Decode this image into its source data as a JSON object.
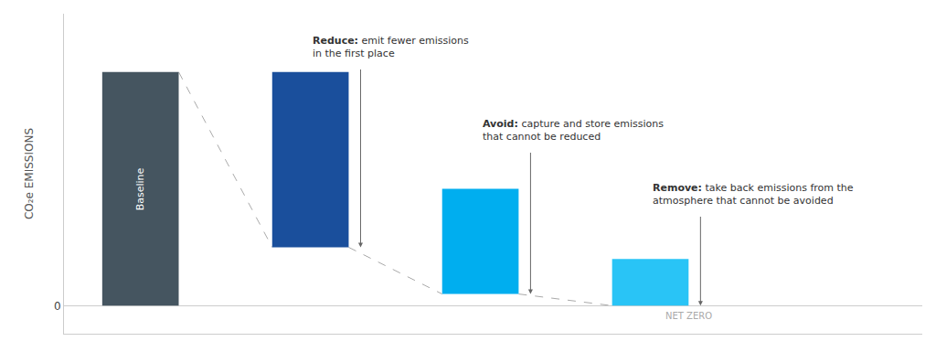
{
  "chart_data": {
    "type": "bar",
    "categories": [
      null,
      null,
      null,
      null
    ],
    "values": [
      10,
      7.5,
      4.5,
      2.0
    ],
    "bottoms": [
      0,
      2.5,
      0.5,
      0.0
    ],
    "colors": [
      "#455560",
      "#1a4f9c",
      "#00aeef",
      "#29c4f6"
    ],
    "ylabel": "CO₂e EMISSIONS",
    "ylim": [
      -1.2,
      12.5
    ],
    "yticks": [
      0
    ],
    "grid": false,
    "tick_labels": "y",
    "annotations": [
      {
        "text": "Baseline"
      },
      {
        "bold": "Reduce:",
        "text": " emit fewer emissions\nin the first place"
      },
      {
        "bold": "Avoid:",
        "text": " capture and store emissions\nthat cannot be reduced"
      },
      {
        "bold": "Remove:",
        "text": " take back emissions from the\natmosphere that cannot be avoided"
      },
      {
        "text": "NET ZERO"
      }
    ]
  }
}
